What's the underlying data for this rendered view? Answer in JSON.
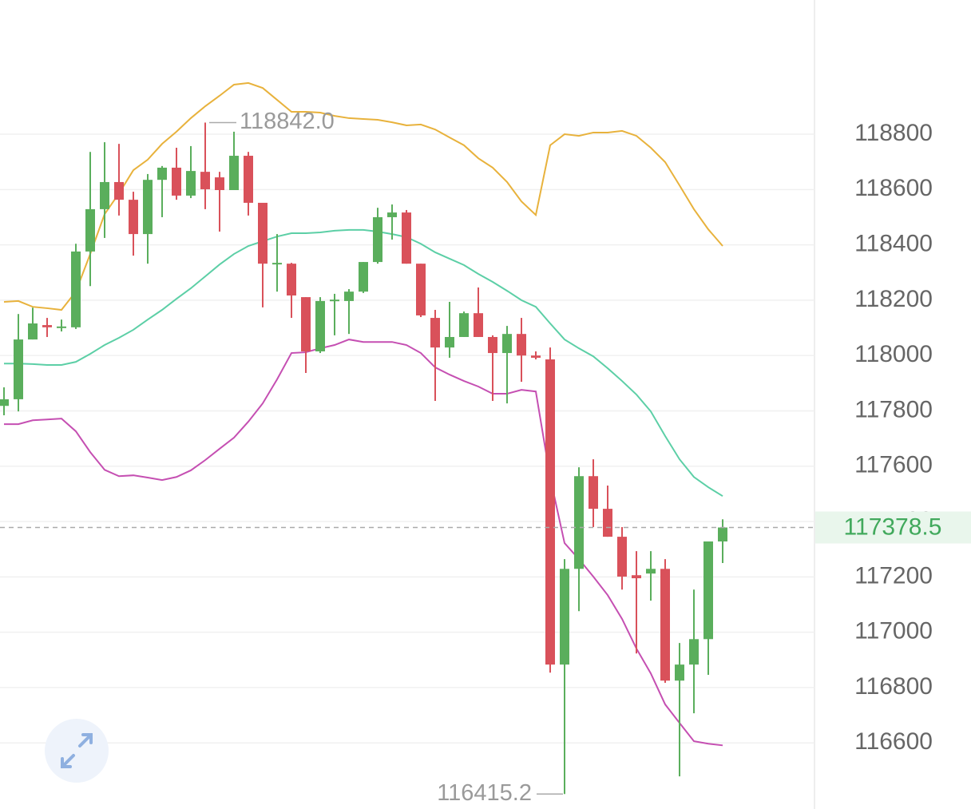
{
  "chart_data": {
    "type": "candlestick",
    "ylim": [
      116361,
      119285
    ],
    "yticks": [
      116600,
      116800,
      117000,
      117200,
      117400,
      117600,
      117800,
      118000,
      118200,
      118400,
      118600,
      118800
    ],
    "grid": true,
    "up_color": "#5aae5c",
    "down_color": "#d9515a",
    "open": [
      117818,
      117842,
      118058,
      118110,
      118100,
      118102,
      118376,
      118529,
      118627,
      118563,
      118439,
      118635,
      118679,
      118578,
      118664,
      118644,
      118598,
      118722,
      118552,
      118332,
      118332,
      118211,
      118015,
      118197,
      118197,
      118231,
      118338,
      118500,
      118517,
      118332,
      118136,
      118029,
      118067,
      118153,
      118067,
      118009,
      118078,
      118000,
      117986,
      116883,
      117229,
      117564,
      117446,
      117345,
      117206,
      117212,
      117229,
      116825,
      116883,
      116975,
      117328
    ],
    "close": [
      117842,
      118058,
      118116,
      118102,
      118105,
      118376,
      118529,
      118627,
      118563,
      118439,
      118635,
      118679,
      118578,
      118667,
      118601,
      118598,
      118722,
      118552,
      118332,
      118335,
      118217,
      118015,
      118197,
      118202,
      118231,
      118338,
      118500,
      118517,
      118332,
      118145,
      118029,
      118067,
      118153,
      118067,
      118009,
      118078,
      118000,
      117992,
      116883,
      117229,
      117564,
      117446,
      117345,
      117201,
      117195,
      117229,
      116825,
      116883,
      116975,
      117328,
      117378.5
    ],
    "high": [
      117885,
      118150,
      118173,
      118136,
      118130,
      118404,
      118736,
      118771,
      118765,
      118592,
      118656,
      118685,
      118751,
      118757,
      118842.0,
      118664,
      118809,
      118736,
      118552,
      118439,
      118335,
      118211,
      118211,
      118223,
      118240,
      118338,
      118534,
      118546,
      118526,
      118332,
      118165,
      118194,
      118159,
      118246,
      118073,
      118107,
      118136,
      118015,
      118029,
      117264,
      117596,
      117625,
      117530,
      117380,
      117293,
      117293,
      117264,
      116961,
      117154,
      117328,
      117408
    ],
    "low": [
      117784,
      117798,
      118058,
      118067,
      118087,
      118096,
      118251,
      118425,
      118506,
      118361,
      118332,
      118500,
      118563,
      118569,
      118529,
      118448,
      118607,
      118506,
      118174,
      118231,
      118136,
      117937,
      118009,
      118073,
      118078,
      118226,
      118332,
      118419,
      118332,
      118139,
      117836,
      117992,
      118067,
      118067,
      117836,
      117827,
      117905,
      117986,
      116854,
      116415.2,
      117076,
      117380,
      117345,
      117154,
      116923,
      117114,
      116817,
      116479,
      116707,
      116846,
      117250
    ],
    "series": [
      {
        "color": "#e8b23c",
        "values": [
          118194,
          118197,
          118176,
          118171,
          118165,
          118231,
          118367,
          118511,
          118586,
          118670,
          118708,
          118765,
          118809,
          118858,
          118901,
          118939,
          118979,
          118985,
          118967,
          118924,
          118881,
          118881,
          118878,
          118866,
          118858,
          118855,
          118852,
          118843,
          118832,
          118835,
          118817,
          118788,
          118760,
          118713,
          118679,
          118627,
          118557,
          118508,
          118760,
          118800,
          118794,
          118806,
          118806,
          118812,
          118794,
          118751,
          118699,
          118615,
          118529,
          118456,
          118396
        ]
      },
      {
        "color": "#5ccfa6",
        "values": [
          117971,
          117971,
          117969,
          117966,
          117966,
          117977,
          118006,
          118038,
          118064,
          118093,
          118130,
          118165,
          118205,
          118243,
          118286,
          118329,
          118367,
          118396,
          118413,
          118430,
          118442,
          118442,
          118445,
          118451,
          118454,
          118454,
          118448,
          118439,
          118428,
          118404,
          118373,
          118350,
          118327,
          118295,
          118266,
          118234,
          118200,
          118176,
          118116,
          118058,
          118026,
          117997,
          117954,
          117908,
          117859,
          117798,
          117709,
          117625,
          117561,
          117524,
          117492
        ]
      },
      {
        "color": "#c54fb2",
        "values": [
          117752,
          117752,
          117766,
          117769,
          117772,
          117726,
          117651,
          117587,
          117564,
          117567,
          117559,
          117550,
          117561,
          117585,
          117622,
          117663,
          117703,
          117761,
          117827,
          117914,
          118009,
          118012,
          118026,
          118038,
          118058,
          118049,
          118049,
          118049,
          118038,
          118009,
          117957,
          117931,
          117908,
          117888,
          117862,
          117862,
          117876,
          117870,
          117559,
          117322,
          117264,
          117201,
          117134,
          117048,
          116941,
          116851,
          116739,
          116672,
          116606,
          116597,
          116591
        ]
      }
    ],
    "annotations": [
      {
        "value": 118842.0,
        "label": "118842.0"
      },
      {
        "value": 116415.2,
        "label": "116415.2"
      }
    ],
    "last_price": {
      "value": 117378.5,
      "label": "117378.5"
    }
  }
}
